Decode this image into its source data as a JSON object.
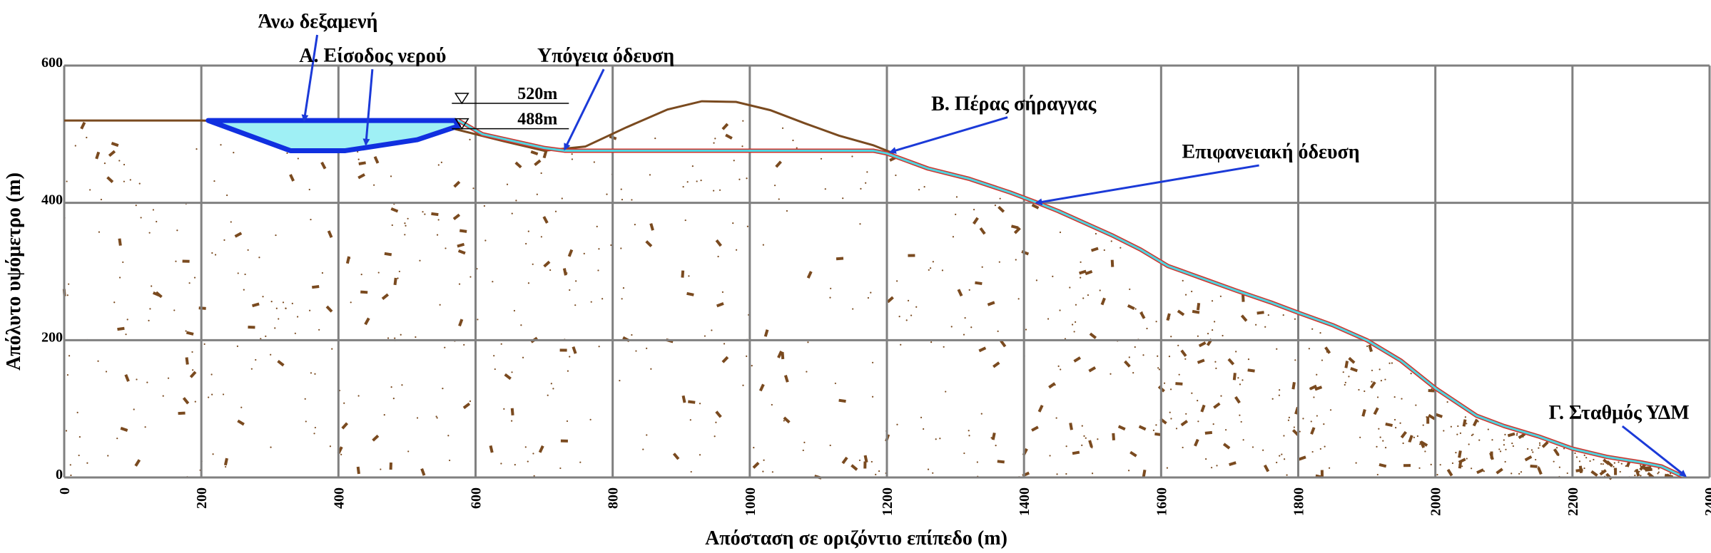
{
  "chart_data": {
    "type": "line",
    "title": "",
    "xlabel": "Απόσταση σε οριζόντιο επίπεδο (m)",
    "ylabel": "Απόλυτο υψόμετρο (m)",
    "xlim": [
      0,
      2400
    ],
    "ylim": [
      0,
      600
    ],
    "x_ticks": [
      "0",
      "200",
      "400",
      "600",
      "800",
      "1000",
      "1200",
      "1400",
      "1600",
      "1800",
      "2000",
      "2200",
      "2400"
    ],
    "y_ticks": [
      "0",
      "200",
      "400",
      "600"
    ],
    "grid": true,
    "colors": {
      "terrain": "#7a4a1f",
      "pipe_outer": "#d0342c",
      "pipe_inner": "#4fd5e0",
      "reservoir_fill": "#9ff0f5",
      "reservoir_edge": "#1030e0",
      "arrow": "#1b3ad8",
      "grid": "#808080"
    },
    "series": [
      {
        "x": [
          0,
          200,
          560,
          640,
          700,
          760,
          820,
          880,
          930,
          980,
          1030,
          1080,
          1130,
          1180,
          1210
        ],
        "y": [
          520,
          520,
          510,
          490,
          476,
          482,
          510,
          536,
          548,
          547,
          535,
          516,
          498,
          484,
          472
        ]
      },
      {
        "x": [
          575,
          610,
          700,
          730,
          1180,
          1200,
          1260,
          1320,
          1380,
          1420,
          1450,
          1490,
          1530,
          1570,
          1610,
          1660,
          1710,
          1760,
          1800,
          1850,
          1900,
          1950,
          2000,
          2030,
          2060,
          2100,
          2150,
          2200,
          2250,
          2300,
          2330,
          2360
        ],
        "y": [
          520,
          500,
          480,
          476,
          476,
          472,
          450,
          435,
          415,
          400,
          388,
          370,
          352,
          332,
          308,
          290,
          272,
          255,
          240,
          222,
          200,
          170,
          130,
          110,
          90,
          75,
          60,
          42,
          30,
          22,
          16,
          2
        ]
      }
    ],
    "reservoir": {
      "outline": {
        "x": [
          210,
          570,
          575,
          515,
          410,
          330,
          210
        ],
        "y": [
          520,
          520,
          512,
          492,
          476,
          476,
          520
        ]
      },
      "levels": [
        "520m",
        "488m"
      ]
    },
    "annotations": [
      {
        "text": "Άνω δεξαμενή",
        "x": 370,
        "y": 655,
        "arrow_to": [
          350,
          520
        ]
      },
      {
        "text": "Α. Είσοδος νερού",
        "x": 450,
        "y": 605,
        "arrow_to": [
          440,
          485
        ]
      },
      {
        "text": "Υπόγεια όδευση",
        "x": 790,
        "y": 605,
        "arrow_to": [
          730,
          478
        ]
      },
      {
        "text": "Β. Πέρας σήραγγας",
        "x": 1385,
        "y": 535,
        "arrow_to": [
          1205,
          474
        ]
      },
      {
        "text": "Επιφανειακή όδευση",
        "x": 1760,
        "y": 465,
        "arrow_to": [
          1418,
          400
        ]
      },
      {
        "text": "Γ. Σταθμός ΥΔΜ",
        "x": 2268,
        "y": 85,
        "arrow_to": [
          2365,
          2
        ]
      }
    ]
  }
}
